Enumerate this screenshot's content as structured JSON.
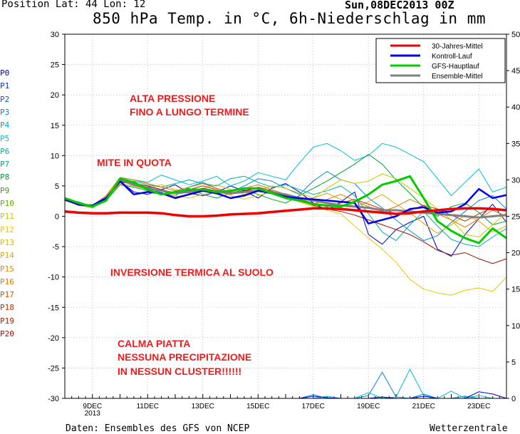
{
  "header": {
    "position": "Position  Lat: 44 Lon: 12",
    "title": "850 hPa Temp. in °C, 6h-Niederschlag in mm",
    "date": "Sun,08DEC2013 00Z"
  },
  "footer": {
    "source": "Daten: Ensembles des GFS von NCEP",
    "brand": "Wetterzentrale"
  },
  "members": [
    {
      "label": "P0",
      "color": "#0000cc"
    },
    {
      "label": "P1",
      "color": "#0033dd"
    },
    {
      "label": "P2",
      "color": "#0055ee"
    },
    {
      "label": "P3",
      "color": "#0088dd"
    },
    {
      "label": "P4",
      "color": "#00a6dd"
    },
    {
      "label": "P5",
      "color": "#00c0d0"
    },
    {
      "label": "P6",
      "color": "#00b0a0"
    },
    {
      "label": "P7",
      "color": "#00b070"
    },
    {
      "label": "P8",
      "color": "#00a030"
    },
    {
      "label": "P9",
      "color": "#33aa00"
    },
    {
      "label": "P10",
      "color": "#66b000"
    },
    {
      "label": "P11",
      "color": "#c8c800"
    },
    {
      "label": "P12",
      "color": "#e8c800"
    },
    {
      "label": "P13",
      "color": "#ddbb00"
    },
    {
      "label": "P14",
      "color": "#e0a800"
    },
    {
      "label": "P15",
      "color": "#e89000"
    },
    {
      "label": "P16",
      "color": "#dd7700"
    },
    {
      "label": "P17",
      "color": "#cc5500"
    },
    {
      "label": "P18",
      "color": "#bb3300"
    },
    {
      "label": "P19",
      "color": "#aa2200"
    },
    {
      "label": "P20",
      "color": "#991100"
    }
  ],
  "annotations": [
    "ALTA PRESSIONE",
    "FINO A LUNGO TERMINE",
    "MITE IN QUOTA",
    "INVERSIONE TERMICA AL SUOLO",
    "CALMA PIATTA",
    "NESSUNA PRECIPITAZIONE",
    "IN NESSUN CLUSTER!!!!!!"
  ],
  "chart_data": {
    "type": "line",
    "xlabel": "",
    "ylabel": "",
    "x_ticks": [
      {
        "t": 1,
        "label": "9DEC",
        "sub": "2013"
      },
      {
        "t": 3,
        "label": "11DEC"
      },
      {
        "t": 5,
        "label": "13DEC"
      },
      {
        "t": 7,
        "label": "15DEC"
      },
      {
        "t": 9,
        "label": "17DEC"
      },
      {
        "t": 11,
        "label": "19DEC"
      },
      {
        "t": 13,
        "label": "21DEC"
      },
      {
        "t": 15,
        "label": "23DEC"
      }
    ],
    "x_unit": "days since 08DEC2013 00Z",
    "xlim": [
      0,
      16
    ],
    "ylim_left": [
      -30,
      30
    ],
    "yticks_left": [
      30,
      25,
      20,
      15,
      10,
      5,
      0,
      -5,
      -10,
      -15,
      -20,
      -25,
      -30
    ],
    "ylim_right": [
      0,
      50
    ],
    "yticks_right": [
      50,
      45,
      40,
      35,
      30,
      25,
      20,
      15,
      10,
      5,
      0
    ],
    "grid": true,
    "legend_position": "top-right",
    "legend": [
      {
        "name": "30-Jahres-Mittel",
        "color": "#ee0000"
      },
      {
        "name": "Kontroll-Lauf",
        "color": "#0000ee"
      },
      {
        "name": "GFS-Hauptlauf",
        "color": "#00cc00"
      },
      {
        "name": "Ensemble-Mittel",
        "color": "#808080"
      }
    ],
    "x": [
      0,
      0.5,
      1,
      1.5,
      2,
      2.5,
      3,
      3.5,
      4,
      4.5,
      5,
      5.5,
      6,
      6.5,
      7,
      7.5,
      8,
      8.5,
      9,
      9.5,
      10,
      10.5,
      11,
      11.5,
      12,
      12.5,
      13,
      13.5,
      14,
      14.5,
      15,
      15.5,
      16
    ],
    "series": [
      {
        "name": "30-Jahres-Mittel",
        "color": "#ee0000",
        "width": 3.5,
        "values": [
          0.8,
          0.6,
          0.5,
          0.5,
          0.6,
          0.6,
          0.6,
          0.5,
          0.2,
          0.0,
          0.0,
          0.1,
          0.3,
          0.4,
          0.5,
          0.7,
          0.9,
          1.1,
          1.3,
          1.3,
          1.2,
          1.0,
          0.8,
          0.6,
          0.4,
          0.5,
          0.8,
          1.0,
          1.2,
          1.3,
          1.3,
          1.2,
          1.0
        ]
      },
      {
        "name": "Kontroll-Lauf",
        "color": "#0000ee",
        "width": 2.5,
        "values": [
          2.8,
          1.9,
          1.8,
          3.0,
          5.8,
          3.6,
          4.0,
          3.8,
          3.0,
          3.6,
          4.2,
          3.8,
          3.0,
          3.4,
          4.2,
          3.8,
          3.2,
          3.0,
          2.8,
          2.6,
          2.4,
          2.2,
          -1.2,
          -0.6,
          0.0,
          1.2,
          1.5,
          0.6,
          0.8,
          2.0,
          4.5,
          3.0,
          3.5
        ]
      },
      {
        "name": "GFS-Hauptlauf",
        "color": "#00cc00",
        "width": 3,
        "values": [
          3.0,
          2.2,
          1.6,
          2.6,
          6.2,
          5.6,
          4.4,
          3.6,
          4.0,
          4.4,
          4.4,
          4.0,
          4.2,
          4.6,
          4.6,
          3.8,
          3.0,
          2.6,
          2.0,
          1.8,
          1.6,
          2.4,
          3.6,
          5.2,
          5.8,
          6.6,
          3.0,
          -0.8,
          -2.4,
          -3.6,
          -4.4,
          -2.0,
          -3.6
        ]
      },
      {
        "name": "Ensemble-Mittel",
        "color": "#808080",
        "width": 3,
        "values": [
          2.8,
          2.0,
          1.6,
          2.8,
          6.0,
          5.2,
          4.6,
          4.2,
          3.8,
          4.0,
          4.2,
          4.0,
          3.8,
          4.0,
          4.2,
          4.0,
          3.6,
          3.0,
          2.6,
          2.2,
          1.8,
          1.6,
          1.4,
          1.0,
          1.0,
          0.8,
          0.6,
          0.4,
          0.2,
          0.0,
          -0.2,
          0.0,
          0.2
        ]
      },
      {
        "name": "P0",
        "color": "#0000cc",
        "width": 1,
        "values": [
          2.8,
          2.0,
          1.8,
          3.2,
          5.8,
          4.0,
          3.6,
          4.4,
          5.2,
          3.8,
          3.4,
          4.0,
          5.0,
          4.2,
          3.0,
          4.6,
          5.4,
          4.0,
          2.2,
          1.0,
          2.4,
          4.0,
          -3.0,
          -4.6,
          -2.2,
          -1.0,
          0.0,
          -5.4,
          -6.6,
          -3.0,
          -0.4,
          2.0,
          -1.0
        ]
      },
      {
        "name": "P3",
        "color": "#0088dd",
        "width": 1,
        "values": [
          2.6,
          2.2,
          1.6,
          3.0,
          6.0,
          5.4,
          5.0,
          3.8,
          3.4,
          4.8,
          5.6,
          4.6,
          4.0,
          5.0,
          6.2,
          5.8,
          4.6,
          3.6,
          5.8,
          7.4,
          6.0,
          5.4,
          3.0,
          1.4,
          -0.6,
          -2.4,
          -4.0,
          -3.2,
          -1.0,
          0.8,
          2.6,
          3.4,
          1.2
        ]
      },
      {
        "name": "P5",
        "color": "#00c0d0",
        "width": 1,
        "values": [
          2.8,
          1.8,
          1.6,
          3.4,
          6.4,
          6.0,
          5.6,
          6.8,
          6.0,
          5.2,
          5.8,
          6.6,
          5.0,
          5.8,
          7.2,
          6.6,
          6.0,
          8.8,
          11.4,
          12.0,
          10.8,
          9.2,
          10.0,
          12.0,
          11.4,
          10.2,
          9.0,
          6.2,
          3.4,
          5.6,
          7.8,
          4.0,
          4.8
        ]
      },
      {
        "name": "P6",
        "color": "#00b0a0",
        "width": 1,
        "values": [
          2.8,
          2.4,
          1.6,
          2.8,
          5.6,
          5.8,
          5.2,
          4.8,
          5.4,
          6.0,
          5.4,
          5.0,
          6.2,
          6.6,
          5.6,
          4.8,
          5.2,
          4.4,
          3.6,
          4.2,
          5.0,
          3.4,
          0.4,
          -2.6,
          -4.0,
          -1.4,
          0.8,
          -1.6,
          -3.8,
          -4.6,
          -5.0,
          -3.4,
          -2.0
        ]
      },
      {
        "name": "P8",
        "color": "#00a030",
        "width": 1,
        "values": [
          2.6,
          2.0,
          1.4,
          2.6,
          5.2,
          4.8,
          4.2,
          3.6,
          4.0,
          4.6,
          3.6,
          3.0,
          3.8,
          4.4,
          3.6,
          2.8,
          2.2,
          3.4,
          4.6,
          5.8,
          7.2,
          8.6,
          10.2,
          8.6,
          6.0,
          3.8,
          1.4,
          0.0,
          1.6,
          2.2,
          0.6,
          -1.4,
          -0.8
        ]
      },
      {
        "name": "P11",
        "color": "#c8c800",
        "width": 1,
        "values": [
          2.8,
          2.2,
          1.8,
          3.0,
          6.0,
          5.6,
          4.6,
          5.2,
          4.4,
          3.8,
          4.6,
          5.2,
          4.4,
          3.6,
          4.2,
          5.0,
          4.6,
          3.8,
          3.0,
          4.6,
          6.0,
          5.4,
          5.8,
          7.0,
          6.2,
          4.6,
          3.0,
          1.2,
          -0.6,
          -3.0,
          -3.4,
          -1.4,
          0.6
        ]
      },
      {
        "name": "P12",
        "color": "#e8c800",
        "width": 1,
        "values": [
          2.8,
          2.0,
          1.6,
          3.2,
          6.2,
          5.4,
          4.8,
          4.2,
          3.4,
          3.0,
          3.6,
          4.2,
          3.4,
          2.8,
          3.4,
          4.0,
          3.2,
          2.4,
          1.6,
          1.0,
          0.4,
          -1.6,
          -3.6,
          -5.4,
          -7.6,
          -10.4,
          -12.0,
          -12.6,
          -13.0,
          -12.2,
          -11.8,
          -12.4,
          -10.0
        ]
      },
      {
        "name": "P14",
        "color": "#e0a800",
        "width": 1,
        "values": [
          2.6,
          1.8,
          1.4,
          2.8,
          5.4,
          5.0,
          4.4,
          3.8,
          3.2,
          3.6,
          4.2,
          3.6,
          3.0,
          3.6,
          4.4,
          3.8,
          3.0,
          2.4,
          3.0,
          3.8,
          2.8,
          1.6,
          2.4,
          3.6,
          2.0,
          0.6,
          -1.2,
          -2.8,
          -1.4,
          0.2,
          -0.8,
          -2.6,
          -1.6
        ]
      },
      {
        "name": "P16",
        "color": "#dd7700",
        "width": 1,
        "values": [
          2.8,
          2.2,
          1.8,
          3.4,
          6.4,
          6.0,
          5.4,
          4.8,
          4.2,
          4.8,
          5.4,
          4.6,
          4.0,
          4.6,
          5.2,
          4.4,
          3.6,
          2.8,
          2.0,
          2.8,
          3.6,
          2.6,
          1.6,
          0.8,
          1.6,
          2.8,
          1.8,
          0.4,
          -0.6,
          -1.8,
          -0.4,
          1.0,
          0.0
        ]
      },
      {
        "name": "P18",
        "color": "#bb3300",
        "width": 1,
        "values": [
          2.8,
          2.0,
          1.6,
          3.0,
          5.8,
          5.2,
          4.8,
          4.2,
          3.8,
          4.4,
          5.0,
          4.4,
          3.6,
          4.2,
          4.8,
          4.2,
          3.4,
          2.8,
          2.2,
          1.6,
          2.2,
          2.8,
          2.0,
          1.2,
          0.4,
          1.0,
          1.8,
          1.2,
          0.2,
          -0.8,
          0.4,
          1.4,
          0.8
        ]
      },
      {
        "name": "P20",
        "color": "#991100",
        "width": 1,
        "values": [
          2.6,
          2.0,
          1.6,
          2.8,
          5.6,
          5.4,
          5.0,
          4.4,
          3.8,
          4.2,
          4.6,
          4.2,
          3.8,
          4.2,
          4.6,
          4.0,
          3.4,
          2.6,
          1.8,
          1.2,
          0.8,
          0.2,
          -0.6,
          -1.4,
          -2.2,
          -3.0,
          -4.2,
          -5.6,
          -6.4,
          -6.0,
          -7.0,
          -7.8,
          -7.0
        ]
      }
    ],
    "precip_series": [
      {
        "name": "P3",
        "color": "#0088dd",
        "x": [
          8.5,
          9.0,
          9.5,
          10.0,
          10.5,
          11.0,
          11.5,
          12.0,
          12.5,
          13.0,
          13.5,
          14.0,
          14.5,
          15.0,
          15.5,
          16.0
        ],
        "values": [
          0,
          0.5,
          0,
          0,
          0,
          0.4,
          3.6,
          0.2,
          0,
          0.6,
          0,
          0,
          0.3,
          0,
          0,
          0
        ]
      },
      {
        "name": "P5",
        "color": "#00c0d0",
        "x": [
          8.5,
          9.0,
          9.5,
          10.0,
          10.5,
          11.0,
          11.5,
          12.0,
          12.5,
          13.0,
          13.5,
          14.0,
          14.5,
          15.0,
          15.5,
          16.0
        ],
        "values": [
          0,
          0,
          0.3,
          0,
          0,
          0.8,
          0,
          0.2,
          4.0,
          0.4,
          0,
          1.0,
          0,
          0.4,
          0,
          0
        ]
      },
      {
        "name": "Kontroll-Lauf",
        "color": "#0000ee",
        "x": [
          8.5,
          9.0,
          9.5,
          10.0,
          10.5,
          11.0,
          11.5,
          12.0,
          12.5,
          13.0,
          13.5,
          14.0,
          14.5,
          15.0,
          15.5,
          16.0
        ],
        "values": [
          0,
          0.3,
          0.1,
          0,
          0,
          0,
          0.2,
          0,
          0,
          0.3,
          0,
          0,
          0,
          0.9,
          0.6,
          0
        ]
      }
    ]
  }
}
